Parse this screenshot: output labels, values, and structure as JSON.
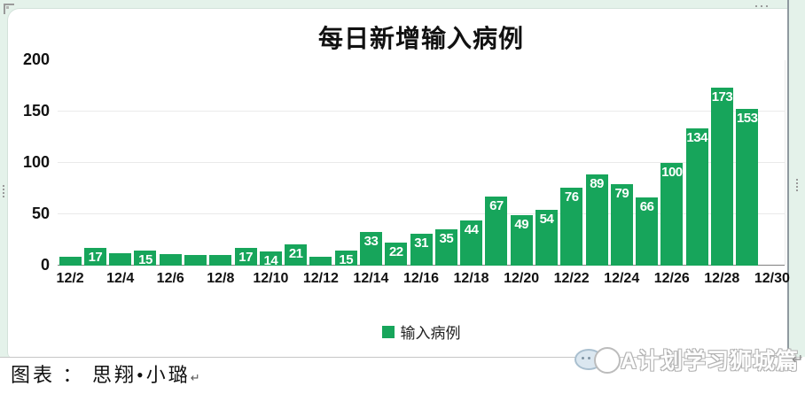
{
  "chart_data": {
    "type": "bar",
    "title": "每日新增输入病例",
    "categories": [
      "12/2",
      "12/3",
      "12/4",
      "12/5",
      "12/6",
      "12/7",
      "12/8",
      "12/9",
      "12/10",
      "12/11",
      "12/12",
      "12/13",
      "12/14",
      "12/15",
      "12/16",
      "12/17",
      "12/18",
      "12/19",
      "12/20",
      "12/21",
      "12/22",
      "12/23",
      "12/24",
      "12/25",
      "12/26",
      "12/27",
      "12/28",
      "12/29",
      "12/30"
    ],
    "values": [
      9,
      17,
      12,
      15,
      11,
      10,
      10,
      17,
      14,
      21,
      9,
      15,
      33,
      22,
      31,
      35,
      44,
      67,
      49,
      54,
      76,
      89,
      79,
      66,
      100,
      134,
      173,
      153,
      null
    ],
    "x_tick_labels": [
      "12/2",
      "12/4",
      "12/6",
      "12/8",
      "12/10",
      "12/12",
      "12/14",
      "12/16",
      "12/18",
      "12/20",
      "12/22",
      "12/24",
      "12/26",
      "12/28",
      "12/30"
    ],
    "y_ticks": [
      0,
      50,
      100,
      150,
      200
    ],
    "ylim": [
      0,
      200
    ],
    "grid": true,
    "xlabel": "",
    "ylabel": "",
    "bar_color": "#17a55b",
    "value_label_color": "#ffffff",
    "value_labels_shown_min": 14,
    "legend": [
      {
        "label": "输入病例",
        "color": "#17a55b"
      }
    ],
    "legend_position": "bottom"
  },
  "title": "每日新增输入病例",
  "legend_label": "输入病例",
  "caption": {
    "prefix": "图表 ： 思翔•小璐",
    "return_mark": "↵"
  },
  "watermark": {
    "text": "A计划学习狮城篇",
    "return_mark": "↵"
  },
  "colors": {
    "frame": "#e4f2ea",
    "bar": "#17a55b",
    "grid": "#eaeaea",
    "axis": "#7f7f7f"
  }
}
